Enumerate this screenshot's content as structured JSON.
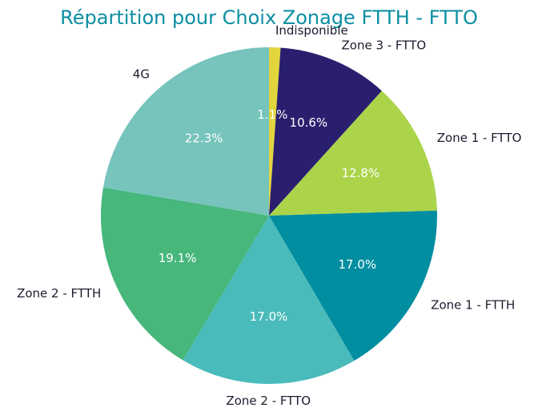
{
  "chart_data": {
    "type": "pie",
    "title": "Répartition pour Choix Zonage FTTH - FTTO",
    "title_color": "#0b8ea3",
    "start_angle_deg": 90,
    "direction": "clockwise",
    "slices": [
      {
        "label": "Indisponible",
        "value": 1.1,
        "pct_label": "1.1%",
        "color": "#e3d63d"
      },
      {
        "label": "Zone 3 - FTTO",
        "value": 10.6,
        "pct_label": "10.6%",
        "color": "#2a1f6e"
      },
      {
        "label": "Zone 1 - FTTO",
        "value": 12.8,
        "pct_label": "12.8%",
        "color": "#abd44a"
      },
      {
        "label": "Zone 1 - FTTH",
        "value": 17.0,
        "pct_label": "17.0%",
        "color": "#008ea0"
      },
      {
        "label": "Zone 2 - FTTO",
        "value": 17.0,
        "pct_label": "17.0%",
        "color": "#4abbbb"
      },
      {
        "label": "Zone 2 - FTTH",
        "value": 19.1,
        "pct_label": "19.1%",
        "color": "#47b77c"
      },
      {
        "label": "4G",
        "value": 22.3,
        "pct_label": "22.3%",
        "color": "#76c4bc"
      }
    ]
  }
}
